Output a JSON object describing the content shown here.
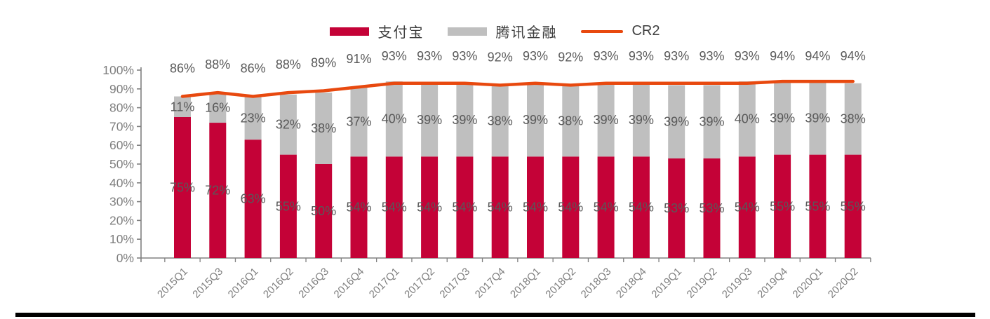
{
  "chart_data": {
    "type": "bar",
    "subtype": "stacked-bar-with-line",
    "title": "",
    "xlabel": "",
    "ylabel": "",
    "ylim": [
      0,
      100
    ],
    "ytick_step": 10,
    "yticklabels": [
      "0%",
      "10%",
      "20%",
      "30%",
      "40%",
      "50%",
      "60%",
      "70%",
      "80%",
      "90%",
      "100%"
    ],
    "grid": false,
    "legend_position": "top",
    "label_suffix": "%",
    "categories": [
      "2015Q1",
      "2015Q3",
      "2016Q1",
      "2016Q2",
      "2016Q3",
      "2016Q4",
      "2017Q1",
      "2017Q2",
      "2017Q3",
      "2017Q4",
      "2018Q1",
      "2018Q2",
      "2018Q3",
      "2018Q4",
      "2019Q1",
      "2019Q2",
      "2019Q3",
      "2019Q4",
      "2020Q1",
      "2020Q2"
    ],
    "series": [
      {
        "name": "支付宝",
        "type": "bar",
        "color": "#C40237",
        "values": [
          75,
          72,
          63,
          55,
          50,
          54,
          54,
          54,
          54,
          54,
          54,
          54,
          54,
          54,
          53,
          53,
          54,
          55,
          55,
          55
        ]
      },
      {
        "name": "腾讯金融",
        "type": "bar",
        "color": "#BFBFBF",
        "values": [
          11,
          16,
          23,
          32,
          38,
          37,
          40,
          39,
          39,
          38,
          39,
          38,
          39,
          39,
          39,
          39,
          40,
          39,
          39,
          38
        ]
      },
      {
        "name": "CR2",
        "type": "line",
        "color": "#E8490F",
        "values": [
          86,
          88,
          86,
          88,
          89,
          91,
          93,
          93,
          93,
          92,
          93,
          92,
          93,
          93,
          93,
          93,
          93,
          94,
          94,
          94
        ]
      }
    ]
  },
  "colors": {
    "background": "#FFFFFF",
    "axis_line": "#808080",
    "axis_text": "#7F7F7F",
    "label_text": "#595959",
    "bottom_rule": "#000000"
  }
}
